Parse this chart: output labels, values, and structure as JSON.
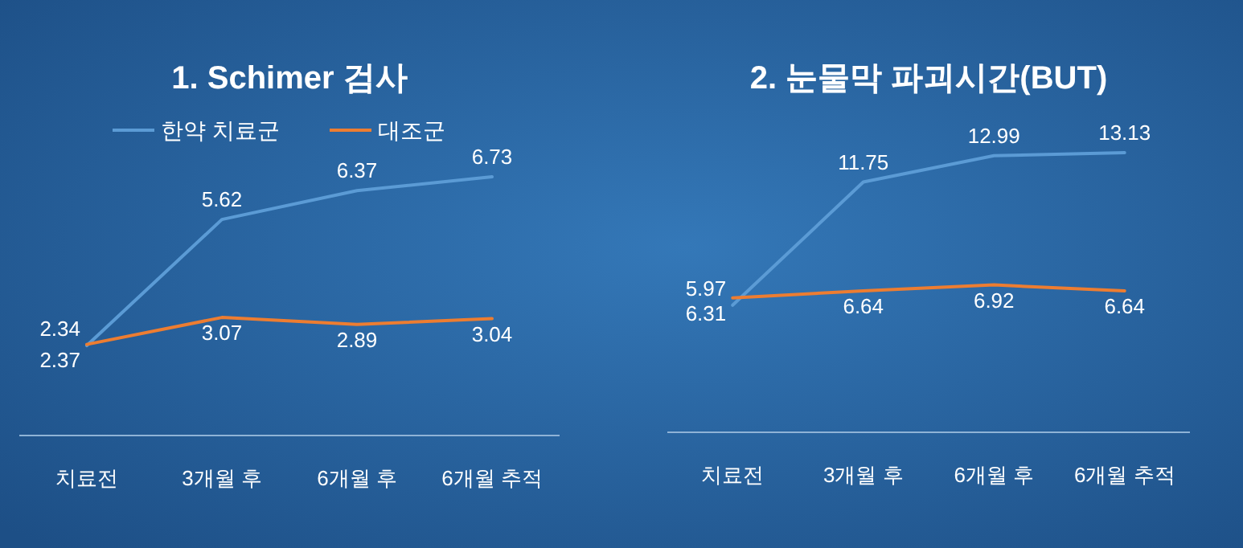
{
  "chart_data": [
    {
      "type": "line",
      "title": "1. Schimer 검사",
      "categories": [
        "치료전",
        "3개월 후",
        "6개월 후",
        "6개월 추적"
      ],
      "series": [
        {
          "name": "한약 치료군",
          "color": "#5b9bd5",
          "values": [
            2.34,
            5.62,
            6.37,
            6.73
          ]
        },
        {
          "name": "대조군",
          "color": "#ed7d31",
          "values": [
            2.37,
            3.07,
            2.89,
            3.04
          ]
        }
      ],
      "data_labels": true,
      "legend": "top"
    },
    {
      "type": "line",
      "title": "2. 눈물막 파괴시간(BUT)",
      "categories": [
        "치료전",
        "3개월 후",
        "6개월 후",
        "6개월 추적"
      ],
      "series": [
        {
          "color": "#5b9bd5",
          "values": [
            5.97,
            11.75,
            12.99,
            13.13
          ]
        },
        {
          "color": "#ed7d31",
          "values": [
            6.31,
            6.64,
            6.92,
            6.64
          ]
        }
      ],
      "data_labels": true,
      "legend": false
    }
  ]
}
